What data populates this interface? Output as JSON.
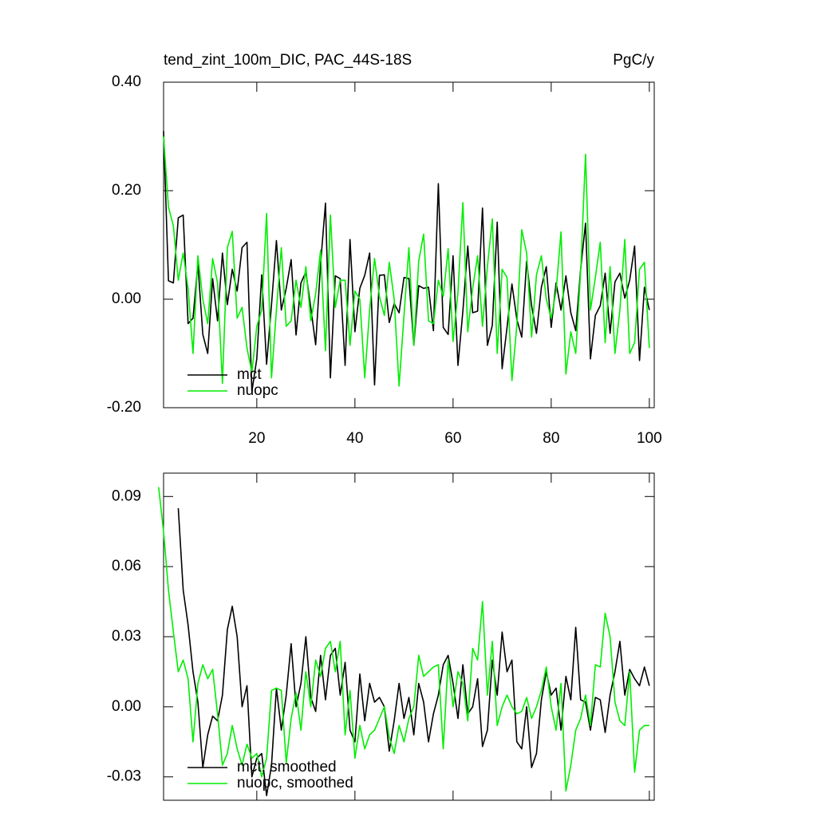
{
  "chart_data": [
    {
      "type": "line",
      "title": "tend_zint_100m_DIC, PAC_44S-18S",
      "units": "PgC/y",
      "legend": "lower left",
      "x": [
        1,
        2,
        3,
        4,
        5,
        6,
        7,
        8,
        9,
        10,
        11,
        12,
        13,
        14,
        15,
        16,
        17,
        18,
        19,
        20,
        21,
        22,
        23,
        24,
        25,
        26,
        27,
        28,
        29,
        30,
        31,
        32,
        33,
        34,
        35,
        36,
        37,
        38,
        39,
        40,
        41,
        42,
        43,
        44,
        45,
        46,
        47,
        48,
        49,
        50,
        51,
        52,
        53,
        54,
        55,
        56,
        57,
        58,
        59,
        60,
        61,
        62,
        63,
        64,
        65,
        66,
        67,
        68,
        69,
        70,
        71,
        72,
        73,
        74,
        75,
        76,
        77,
        78,
        79,
        80,
        81,
        82,
        83,
        84,
        85,
        86,
        87,
        88,
        89,
        90,
        91,
        92,
        93,
        94,
        95,
        96,
        97,
        98,
        99,
        100
      ],
      "series": [
        {
          "name": "mct",
          "color": "#000000",
          "values": [
            0.31,
            0.034,
            0.03,
            0.15,
            0.155,
            -0.045,
            -0.035,
            0.065,
            -0.065,
            -0.1,
            0.038,
            -0.04,
            0.085,
            -0.01,
            0.055,
            0.015,
            0.095,
            0.105,
            -0.17,
            -0.11,
            0.045,
            -0.12,
            -0.01,
            0.108,
            -0.02,
            0.02,
            0.073,
            -0.066,
            0.03,
            0.05,
            -0.015,
            -0.084,
            0.065,
            0.177,
            -0.145,
            0.043,
            0.038,
            -0.122,
            0.11,
            -0.06,
            0.02,
            0.044,
            0.085,
            -0.158,
            0.044,
            0.045,
            -0.043,
            -0.008,
            -0.025,
            0.04,
            0.038,
            -0.085,
            0.025,
            0.02,
            0.022,
            -0.058,
            0.213,
            -0.052,
            -0.065,
            0.08,
            -0.122,
            -0.022,
            0.098,
            -0.025,
            -0.022,
            0.168,
            -0.085,
            -0.048,
            0.142,
            -0.128,
            -0.052,
            0.028,
            -0.037,
            -0.07,
            0.07,
            -0.012,
            -0.063,
            0.022,
            0.06,
            -0.052,
            0.03,
            -0.02,
            0.043,
            -0.025,
            -0.058,
            0.055,
            0.14,
            -0.11,
            -0.03,
            -0.012,
            0.048,
            -0.063,
            0.032,
            0.048,
            0.002,
            0.035,
            0.098,
            -0.113,
            0.022,
            -0.02
          ]
        },
        {
          "name": "nuopc",
          "color": "#00ee00",
          "values": [
            0.3,
            0.17,
            0.135,
            0.035,
            0.085,
            0.02,
            -0.1,
            0.08,
            0.0,
            -0.045,
            0.075,
            0.03,
            -0.155,
            0.095,
            0.125,
            -0.035,
            -0.015,
            -0.09,
            -0.135,
            -0.05,
            -0.02,
            0.158,
            -0.145,
            -0.02,
            0.095,
            -0.05,
            -0.04,
            0.035,
            -0.015,
            0.06,
            -0.04,
            0.01,
            0.09,
            -0.095,
            0.155,
            -0.015,
            0.035,
            0.035,
            -0.085,
            0.015,
            0.0,
            -0.145,
            -0.02,
            0.075,
            0.005,
            -0.03,
            0.068,
            0.0,
            -0.16,
            -0.03,
            0.095,
            -0.085,
            0.07,
            0.12,
            -0.04,
            -0.045,
            0.035,
            0.005,
            0.093,
            -0.078,
            0.012,
            0.178,
            -0.06,
            0.02,
            0.08,
            -0.05,
            0.06,
            0.148,
            -0.1,
            0.055,
            0.04,
            -0.15,
            -0.048,
            0.128,
            0.085,
            -0.07,
            0.045,
            0.08,
            0.0,
            -0.035,
            0.015,
            0.124,
            -0.138,
            -0.06,
            -0.1,
            0.05,
            0.267,
            -0.02,
            0.04,
            0.105,
            -0.08,
            0.06,
            -0.1,
            -0.02,
            0.11,
            -0.1,
            -0.08,
            0.055,
            0.068,
            -0.09
          ]
        }
      ],
      "xlim": [
        1,
        101
      ],
      "xticks": [
        20,
        40,
        60,
        80,
        100
      ],
      "ylim": [
        -0.2,
        0.4
      ],
      "yticks": [
        {
          "value": -0.2,
          "label": "-0.20"
        },
        {
          "value": 0,
          "label": "0.00"
        },
        {
          "value": 0.2,
          "label": "0.20"
        },
        {
          "value": 0.4,
          "label": "0.40"
        }
      ]
    },
    {
      "type": "line",
      "legend": "lower left",
      "x": [
        0,
        1,
        2,
        3,
        4,
        5,
        6,
        7,
        8,
        9,
        10,
        11,
        12,
        13,
        14,
        15,
        16,
        17,
        18,
        19,
        20,
        21,
        22,
        23,
        24,
        25,
        26,
        27,
        28,
        29,
        30,
        31,
        32,
        33,
        34,
        35,
        36,
        37,
        38,
        39,
        40,
        41,
        42,
        43,
        44,
        45,
        46,
        47,
        48,
        49,
        50,
        51,
        52,
        53,
        54,
        55,
        56,
        57,
        58,
        59,
        60,
        61,
        62,
        63,
        64,
        65,
        66,
        67,
        68,
        69,
        70,
        71,
        72,
        73,
        74,
        75,
        76,
        77,
        78,
        79,
        80,
        81,
        82,
        83,
        84,
        85,
        86,
        87,
        88,
        89,
        90,
        91,
        92,
        93,
        94,
        95,
        96,
        97,
        98,
        99,
        100
      ],
      "series": [
        {
          "name": "mct, smoothed",
          "color": "#000000",
          "values": [
            null,
            null,
            null,
            null,
            0.085,
            0.05,
            0.035,
            0.015,
            0.002,
            -0.026,
            -0.012,
            -0.004,
            -0.006,
            0.005,
            0.033,
            0.043,
            0.03,
            0.0,
            0.009,
            -0.03,
            -0.022,
            -0.02,
            -0.038,
            -0.025,
            0.008,
            -0.01,
            0.005,
            0.027,
            0.0,
            0.01,
            0.03,
            0.004,
            -0.002,
            0.022,
            0.003,
            0.022,
            0.025,
            0.005,
            0.019,
            -0.01,
            -0.015,
            0.014,
            -0.006,
            0.01,
            0.002,
            0.004,
            0.0,
            -0.019,
            -0.006,
            0.01,
            -0.005,
            0.004,
            -0.012,
            0.01,
            0.002,
            -0.015,
            -0.003,
            0.005,
            0.018,
            0.022,
            0.01,
            -0.005,
            0.018,
            -0.003,
            0.0,
            0.012,
            -0.017,
            -0.01,
            0.02,
            0.005,
            0.032,
            0.015,
            0.02,
            -0.015,
            -0.018,
            0.0,
            -0.026,
            -0.02,
            0.003,
            0.015,
            0.005,
            0.008,
            -0.01,
            0.013,
            0.003,
            0.034,
            0.003,
            0.002,
            -0.01,
            0.004,
            0.003,
            -0.011,
            0.005,
            0.015,
            0.028,
            0.005,
            0.016,
            0.012,
            0.009,
            0.017,
            0.009
          ]
        },
        {
          "name": "nuopc, smoothed",
          "color": "#00ee00",
          "values": [
            0.094,
            0.075,
            0.05,
            0.032,
            0.015,
            0.02,
            0.012,
            -0.015,
            0.01,
            0.018,
            0.012,
            0.016,
            -0.003,
            -0.025,
            -0.02,
            -0.008,
            -0.018,
            -0.025,
            -0.016,
            -0.022,
            -0.02,
            -0.03,
            -0.022,
            0.007,
            0.008,
            0.007,
            -0.024,
            -0.005,
            0.006,
            -0.01,
            0.015,
            0.0,
            0.02,
            0.013,
            0.025,
            0.028,
            0.015,
            0.028,
            -0.012,
            0.007,
            -0.022,
            -0.008,
            -0.018,
            -0.012,
            -0.01,
            -0.005,
            0.0,
            -0.013,
            -0.02,
            -0.008,
            -0.015,
            -0.005,
            0.0,
            0.022,
            0.013,
            0.015,
            0.017,
            0.018,
            -0.018,
            0.02,
            0.0,
            0.015,
            0.01,
            -0.006,
            0.025,
            0.02,
            0.045,
            0.005,
            0.028,
            -0.008,
            0.0,
            0.005,
            0.0,
            -0.003,
            -0.002,
            0.004,
            -0.005,
            0.0,
            0.007,
            0.017,
            0.0,
            -0.01,
            0.01,
            -0.036,
            -0.025,
            -0.01,
            -0.005,
            0.005,
            -0.008,
            0.018,
            0.017,
            0.04,
            0.03,
            0.002,
            -0.006,
            -0.008,
            0.015,
            -0.028,
            -0.01,
            -0.008,
            -0.008
          ]
        }
      ],
      "xlim": [
        1,
        101
      ],
      "xticks": [
        20,
        40,
        60,
        80,
        100
      ],
      "ylim": [
        -0.04,
        0.1
      ],
      "yticks": [
        {
          "value": -0.03,
          "label": "-0.03"
        },
        {
          "value": 0,
          "label": "0.00"
        },
        {
          "value": 0.03,
          "label": "0.03"
        },
        {
          "value": 0.06,
          "label": "0.06"
        },
        {
          "value": 0.09,
          "label": "0.09"
        }
      ]
    }
  ]
}
